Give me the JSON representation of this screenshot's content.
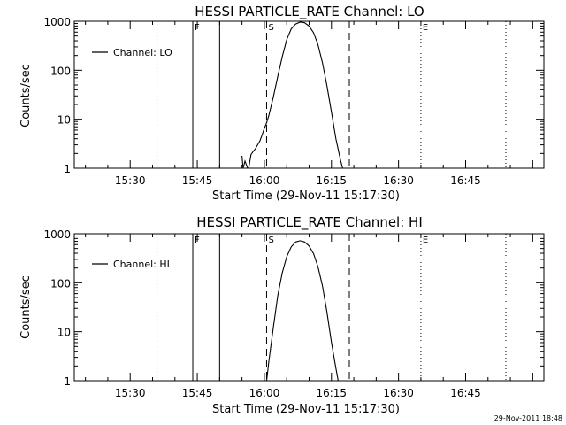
{
  "timestamp": "29-Nov-2011 18:48",
  "chart_data": [
    {
      "type": "line",
      "title": "HESSI PARTICLE_RATE Channel: LO",
      "xlabel": "Start Time (29-Nov-11 15:17:30)",
      "ylabel": "Counts/sec",
      "yscale": "log",
      "ylim": [
        1,
        1000
      ],
      "x_ticks": [
        "15:30",
        "15:45",
        "16:00",
        "16:15",
        "16:30",
        "16:45"
      ],
      "y_ticks": [
        "1",
        "10",
        "100",
        "1000"
      ],
      "legend": {
        "label": "Channel: LO",
        "placement": "top-left"
      },
      "xlim": [
        "15:17:30",
        "17:02:30"
      ],
      "series": [
        {
          "name": "Channel: LO",
          "points": [
            [
              "15:55:00",
              1.8
            ],
            [
              "15:55:15",
              1.0
            ],
            [
              "15:55:40",
              1.4
            ],
            [
              "15:56:15",
              1.0
            ],
            [
              "15:56:30",
              1.0
            ],
            [
              "15:57:00",
              1.9
            ],
            [
              "15:57:30",
              2.2
            ],
            [
              "15:58:00",
              2.5
            ],
            [
              "15:58:30",
              3.0
            ],
            [
              "15:59:00",
              3.6
            ],
            [
              "15:59:30",
              4.8
            ],
            [
              "16:00:00",
              6.5
            ],
            [
              "16:00:30",
              8.5
            ],
            [
              "16:01:00",
              12
            ],
            [
              "16:02:00",
              28
            ],
            [
              "16:03:00",
              75
            ],
            [
              "16:04:00",
              190
            ],
            [
              "16:05:00",
              420
            ],
            [
              "16:06:00",
              700
            ],
            [
              "16:07:00",
              880
            ],
            [
              "16:08:00",
              960
            ],
            [
              "16:09:00",
              930
            ],
            [
              "16:10:00",
              800
            ],
            [
              "16:11:00",
              580
            ],
            [
              "16:12:00",
              330
            ],
            [
              "16:13:00",
              140
            ],
            [
              "16:14:00",
              48
            ],
            [
              "16:15:00",
              14
            ],
            [
              "16:16:00",
              4
            ],
            [
              "16:17:00",
              1.5
            ],
            [
              "16:17:30",
              1.0
            ]
          ]
        }
      ],
      "markers": [
        {
          "time": "15:36:00",
          "style": "dotted",
          "label": ""
        },
        {
          "time": "15:44:00",
          "style": "solid",
          "label": "F"
        },
        {
          "time": "15:50:00",
          "style": "solid",
          "label": ""
        },
        {
          "time": "16:00:30",
          "style": "dashed",
          "label": "S"
        },
        {
          "time": "16:19:00",
          "style": "dashed",
          "label": ""
        },
        {
          "time": "16:35:00",
          "style": "dotted",
          "label": "E"
        },
        {
          "time": "16:54:00",
          "style": "dotted",
          "label": ""
        }
      ]
    },
    {
      "type": "line",
      "title": "HESSI PARTICLE_RATE Channel: HI",
      "xlabel": "Start Time (29-Nov-11 15:17:30)",
      "ylabel": "Counts/sec",
      "yscale": "log",
      "ylim": [
        1,
        1000
      ],
      "x_ticks": [
        "15:30",
        "15:45",
        "16:00",
        "16:15",
        "16:30",
        "16:45"
      ],
      "y_ticks": [
        "1",
        "10",
        "100",
        "1000"
      ],
      "legend": {
        "label": "Channel: HI",
        "placement": "top-left"
      },
      "xlim": [
        "15:17:30",
        "17:02:30"
      ],
      "series": [
        {
          "name": "Channel: HI",
          "points": [
            [
              "16:00:30",
              1.0
            ],
            [
              "16:01:00",
              2.5
            ],
            [
              "16:02:00",
              12
            ],
            [
              "16:03:00",
              55
            ],
            [
              "16:04:00",
              160
            ],
            [
              "16:05:00",
              340
            ],
            [
              "16:06:00",
              540
            ],
            [
              "16:07:00",
              680
            ],
            [
              "16:08:00",
              720
            ],
            [
              "16:09:00",
              680
            ],
            [
              "16:10:00",
              560
            ],
            [
              "16:11:00",
              390
            ],
            [
              "16:12:00",
              210
            ],
            [
              "16:13:00",
              85
            ],
            [
              "16:14:00",
              25
            ],
            [
              "16:15:00",
              6
            ],
            [
              "16:16:00",
              1.8
            ],
            [
              "16:16:30",
              1.0
            ]
          ]
        }
      ],
      "markers": [
        {
          "time": "15:36:00",
          "style": "dotted",
          "label": ""
        },
        {
          "time": "15:44:00",
          "style": "solid",
          "label": "F"
        },
        {
          "time": "15:50:00",
          "style": "solid",
          "label": ""
        },
        {
          "time": "16:00:30",
          "style": "dashed",
          "label": "S"
        },
        {
          "time": "16:19:00",
          "style": "dashed",
          "label": ""
        },
        {
          "time": "16:35:00",
          "style": "dotted",
          "label": "E"
        },
        {
          "time": "16:54:00",
          "style": "dotted",
          "label": ""
        }
      ]
    }
  ]
}
